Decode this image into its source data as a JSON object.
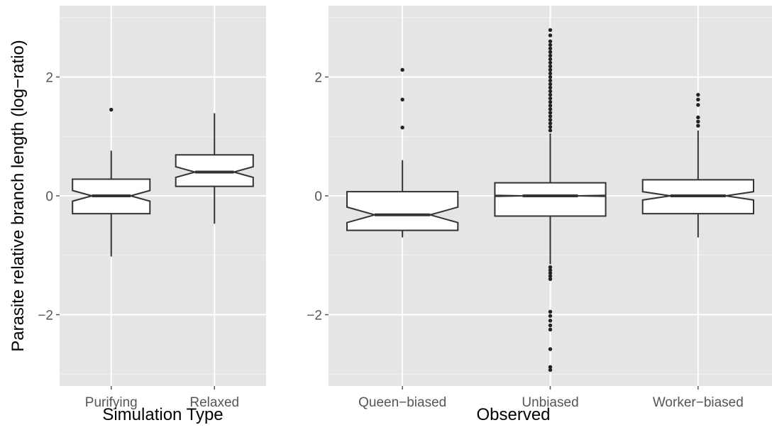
{
  "y_axis_title": "Parasite relative branch length (log−ratio)",
  "chart_data": [
    {
      "type": "boxplot",
      "notched": true,
      "xlabel": "Simulation Type",
      "ylabel": "Parasite relative branch length (log−ratio)",
      "ylim": [
        -3.2,
        3.2
      ],
      "yticks": [
        -2,
        0,
        2
      ],
      "ytick_labels": [
        "−2",
        "0",
        "2"
      ],
      "grid": true,
      "categories": [
        "Purifying",
        "Relaxed"
      ],
      "boxes": [
        {
          "category": "Purifying",
          "q1": -0.3,
          "median": 0.0,
          "q3": 0.28,
          "whisker_low": -1.02,
          "whisker_high": 0.76,
          "notch": 0.09,
          "outliers": [
            1.45
          ]
        },
        {
          "category": "Relaxed",
          "q1": 0.16,
          "median": 0.4,
          "q3": 0.69,
          "whisker_low": -0.47,
          "whisker_high": 1.39,
          "notch": 0.09,
          "outliers": []
        }
      ]
    },
    {
      "type": "boxplot",
      "notched": true,
      "xlabel": "Observed",
      "ylabel": "",
      "ylim": [
        -3.2,
        3.2
      ],
      "yticks": [
        -2,
        0,
        2
      ],
      "ytick_labels": [
        "−2",
        "0",
        "2"
      ],
      "grid": true,
      "categories": [
        "Queen−biased",
        "Unbiased",
        "Worker−biased"
      ],
      "boxes": [
        {
          "category": "Queen−biased",
          "q1": -0.58,
          "median": -0.32,
          "q3": 0.07,
          "whisker_low": -0.7,
          "whisker_high": 0.6,
          "notch": 0.13,
          "outliers": [
            1.15,
            1.62,
            2.12
          ]
        },
        {
          "category": "Unbiased",
          "q1": -0.34,
          "median": 0.0,
          "q3": 0.22,
          "whisker_low": -1.15,
          "whisker_high": 1.05,
          "notch": 0.01,
          "outliers": [
            1.1,
            1.16,
            1.22,
            1.28,
            1.34,
            1.4,
            1.46,
            1.52,
            1.58,
            1.64,
            1.7,
            1.76,
            1.82,
            1.88,
            1.94,
            2.0,
            2.06,
            2.12,
            2.18,
            2.24,
            2.3,
            2.36,
            2.42,
            2.48,
            2.54,
            2.6,
            2.7,
            2.79,
            -1.2,
            -1.25,
            -1.3,
            -1.35,
            -1.4,
            -1.95,
            -2.02,
            -2.1,
            -2.18,
            -2.25,
            -2.58,
            -2.88,
            -2.93
          ]
        },
        {
          "category": "Worker−biased",
          "q1": -0.3,
          "median": 0.0,
          "q3": 0.27,
          "whisker_low": -0.7,
          "whisker_high": 1.1,
          "notch": 0.07,
          "outliers": [
            1.18,
            1.25,
            1.32,
            1.53,
            1.62,
            1.7
          ]
        }
      ]
    }
  ]
}
